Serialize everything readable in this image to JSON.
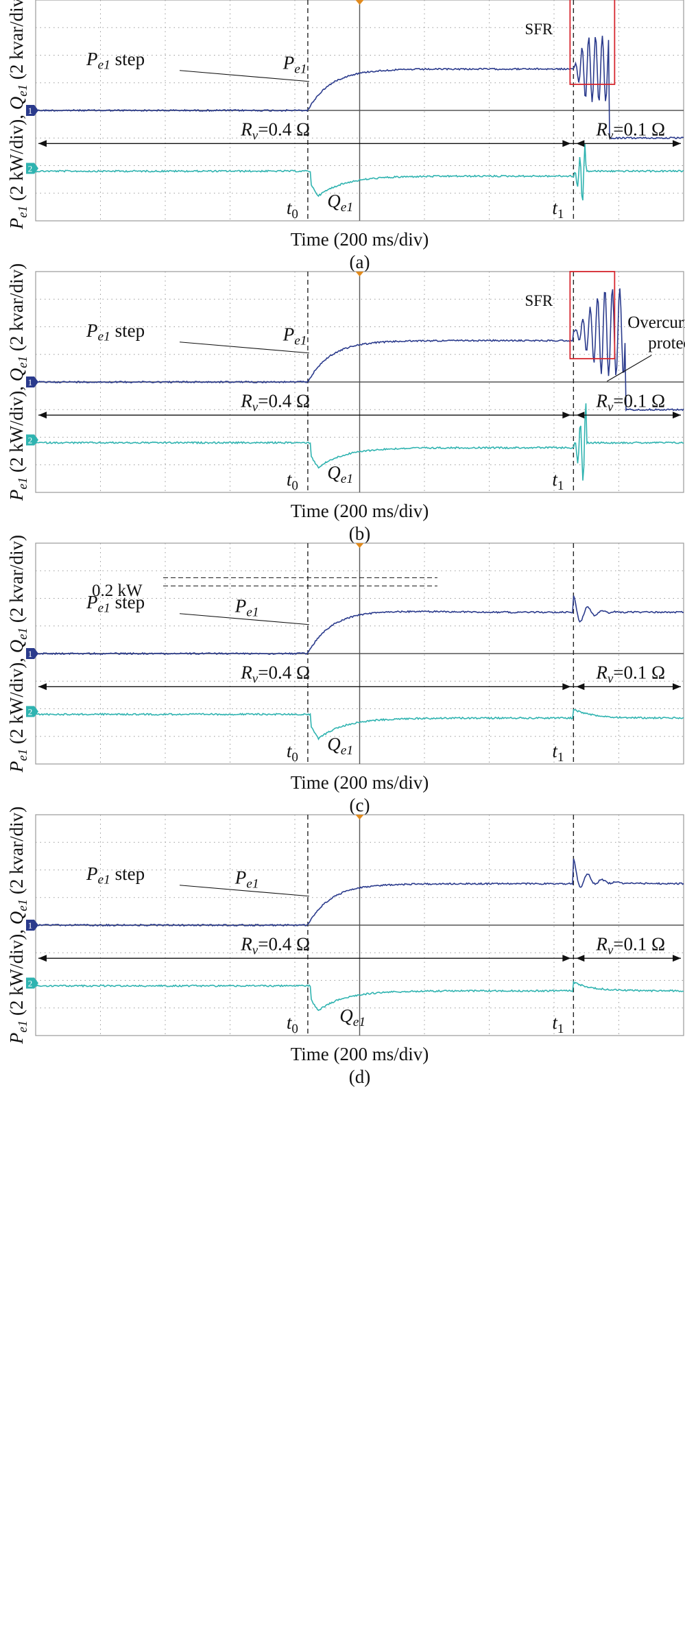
{
  "chart_data": [
    {
      "type": "line",
      "caption": "(a)",
      "ylabel": "P_e1 (2 kW/div), Q_e1 (2 kvar/div)",
      "xlabel": "Time (200 ms/div)",
      "x_divisions": 10,
      "y_divisions": 8,
      "channel_markers": [
        "1",
        "2"
      ],
      "time_markers": [
        {
          "label": "t0",
          "x_div": 4.2
        },
        {
          "label": "t1",
          "x_div": 8.3
        }
      ],
      "rv_before": "R_v=0.4 Ω",
      "rv_after": "R_v=0.1 Ω",
      "series": [
        {
          "name": "P_e1",
          "color": "#2a3a8c",
          "baseline_div": 1.0,
          "steady_div": 2.5,
          "final_div": 0.0,
          "disturbance": "sustained oscillation then trip"
        },
        {
          "name": "Q_e1",
          "color": "#2fb3b0",
          "baseline_div": 1.0,
          "dip_div": -0.4,
          "steady_div": 0.8,
          "final_div": 1.0,
          "disturbance": "growing oscillation"
        }
      ],
      "annotations": {
        "sfr": "SFR",
        "pe1_step": "P_e1 step",
        "pe1_label": "P_e1",
        "qe1_label": "Q_e1"
      }
    },
    {
      "type": "line",
      "caption": "(b)",
      "ylabel": "P_e1 (2 kW/div), Q_e1 (2 kvar/div)",
      "xlabel": "Time (200 ms/div)",
      "x_divisions": 10,
      "y_divisions": 8,
      "channel_markers": [
        "1",
        "2"
      ],
      "time_markers": [
        {
          "label": "t0",
          "x_div": 4.2
        },
        {
          "label": "t1",
          "x_div": 8.3
        }
      ],
      "rv_before": "R_v=0.4 Ω",
      "rv_after": "R_v=0.1 Ω",
      "series": [
        {
          "name": "P_e1",
          "color": "#2a3a8c",
          "baseline_div": 1.0,
          "steady_div": 2.5,
          "final_div": 0.0,
          "disturbance": "growing oscillation then trip"
        },
        {
          "name": "Q_e1",
          "color": "#2fb3b0",
          "baseline_div": 1.0,
          "dip_div": -0.4,
          "steady_div": 0.8,
          "final_div": 1.0,
          "disturbance": "growing oscillation"
        }
      ],
      "annotations": {
        "sfr": "SFR",
        "overcurrent_line1": "Overcurrent",
        "overcurrent_line2": "protection",
        "pe1_step": "P_e1 step",
        "pe1_label": "P_e1",
        "qe1_label": "Q_e1"
      }
    },
    {
      "type": "line",
      "caption": "(c)",
      "ylabel": "P_e1 (2 kW/div), Q_e1 (2 kvar/div)",
      "xlabel": "Time (200 ms/div)",
      "x_divisions": 10,
      "y_divisions": 8,
      "channel_markers": [
        "1",
        "2"
      ],
      "time_markers": [
        {
          "label": "t0",
          "x_div": 4.2
        },
        {
          "label": "t1",
          "x_div": 8.3
        }
      ],
      "rv_before": "R_v=0.4 Ω",
      "rv_after": "R_v=0.1 Ω",
      "series": [
        {
          "name": "P_e1",
          "color": "#2a3a8c",
          "baseline_div": 1.0,
          "steady_div": 2.5,
          "overshoot_div": 0.1,
          "final_div": 2.5,
          "disturbance": "small damped transient"
        },
        {
          "name": "Q_e1",
          "color": "#2fb3b0",
          "baseline_div": 1.0,
          "dip_div": -0.4,
          "steady_div": 0.85,
          "final_div": 0.85,
          "disturbance": "small step up then decay"
        }
      ],
      "annotations": {
        "overshoot": "0.2 kW",
        "pe1_step": "P_e1 step",
        "pe1_label": "P_e1",
        "qe1_label": "Q_e1"
      }
    },
    {
      "type": "line",
      "caption": "(d)",
      "ylabel": "P_e1 (2 kW/div), Q_e1 (2 kvar/div)",
      "xlabel": "Time (200 ms/div)",
      "x_divisions": 10,
      "y_divisions": 8,
      "channel_markers": [
        "1",
        "2"
      ],
      "time_markers": [
        {
          "label": "t0",
          "x_div": 4.2
        },
        {
          "label": "t1",
          "x_div": 8.3
        }
      ],
      "rv_before": "R_v=0.4 Ω",
      "rv_after": "R_v=0.1 Ω",
      "series": [
        {
          "name": "P_e1",
          "color": "#2a3a8c",
          "baseline_div": 1.0,
          "steady_div": 2.5,
          "final_div": 2.5,
          "disturbance": "small damped transient"
        },
        {
          "name": "Q_e1",
          "color": "#2fb3b0",
          "baseline_div": 1.0,
          "dip_div": -0.4,
          "steady_div": 0.8,
          "final_div": 0.8,
          "disturbance": "small step up then decay"
        }
      ],
      "annotations": {
        "pe1_step": "P_e1 step",
        "pe1_label": "P_e1",
        "qe1_label": "Q_e1"
      }
    }
  ],
  "colors": {
    "grid": "#9a9a9a",
    "axis": "#555555",
    "p_trace": "#2a3a8c",
    "q_trace": "#2fb3b0",
    "sfr_box": "#d6262e"
  }
}
